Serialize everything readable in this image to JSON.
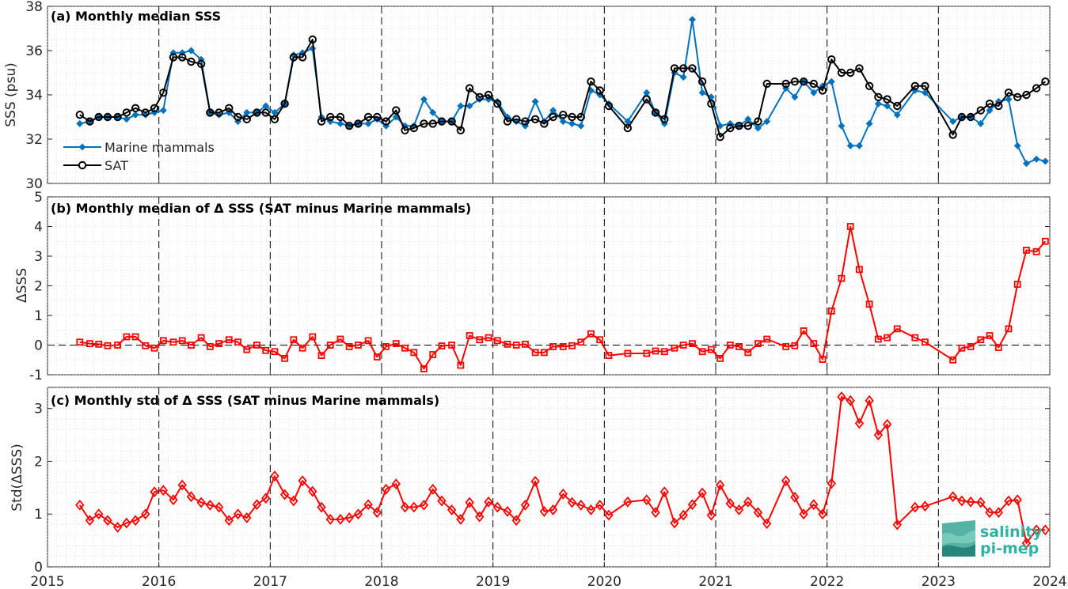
{
  "chart_data": [
    {
      "type": "line",
      "title": "(a) Monthly median SSS",
      "ylabel": "SSS (psu)",
      "xlim": [
        2015,
        2024
      ],
      "ylim": [
        30,
        38
      ],
      "yticks": [
        30,
        32,
        34,
        36,
        38
      ],
      "legend": {
        "placement": "lower-left"
      },
      "series": [
        {
          "name": "Marine mammals",
          "color": "#0072BD",
          "marker": "diamond-filled",
          "x": [
            2015.29,
            2015.38,
            2015.46,
            2015.54,
            2015.63,
            2015.71,
            2015.79,
            2015.88,
            2015.96,
            2016.04,
            2016.13,
            2016.21,
            2016.29,
            2016.38,
            2016.46,
            2016.54,
            2016.63,
            2016.71,
            2016.79,
            2016.88,
            2016.96,
            2017.04,
            2017.13,
            2017.21,
            2017.29,
            2017.38,
            2017.46,
            2017.54,
            2017.63,
            2017.71,
            2017.79,
            2017.88,
            2017.96,
            2018.04,
            2018.13,
            2018.21,
            2018.29,
            2018.38,
            2018.46,
            2018.54,
            2018.63,
            2018.71,
            2018.79,
            2018.88,
            2018.96,
            2019.04,
            2019.13,
            2019.21,
            2019.29,
            2019.38,
            2019.46,
            2019.54,
            2019.63,
            2019.71,
            2019.79,
            2019.88,
            2019.96,
            2020.04,
            2020.21,
            2020.38,
            2020.46,
            2020.54,
            2020.63,
            2020.71,
            2020.79,
            2020.88,
            2020.96,
            2021.04,
            2021.13,
            2021.21,
            2021.29,
            2021.38,
            2021.46,
            2021.63,
            2021.71,
            2021.79,
            2021.88,
            2021.96,
            2022.04,
            2022.13,
            2022.21,
            2022.29,
            2022.38,
            2022.46,
            2022.54,
            2022.63,
            2022.79,
            2022.88,
            2023.13,
            2023.21,
            2023.29,
            2023.38,
            2023.46,
            2023.54,
            2023.63,
            2023.71,
            2023.79,
            2023.88,
            2023.96
          ],
          "values": [
            32.7,
            32.8,
            33.0,
            33.0,
            33.0,
            32.9,
            33.1,
            33.1,
            33.2,
            33.3,
            35.9,
            35.9,
            36.0,
            35.6,
            33.2,
            33.1,
            33.2,
            32.8,
            33.2,
            33.2,
            33.5,
            33.2,
            33.6,
            35.8,
            35.9,
            36.1,
            33.0,
            32.8,
            32.7,
            32.6,
            32.7,
            32.7,
            32.9,
            32.6,
            33.0,
            32.6,
            32.6,
            33.8,
            33.2,
            32.8,
            32.8,
            33.5,
            33.5,
            33.8,
            33.8,
            33.7,
            33.0,
            32.8,
            32.6,
            33.7,
            32.8,
            33.3,
            32.8,
            32.7,
            32.6,
            34.2,
            34.0,
            33.6,
            32.8,
            34.1,
            33.2,
            32.7,
            35.0,
            34.8,
            37.4,
            34.1,
            33.9,
            32.6,
            32.7,
            32.6,
            32.9,
            32.5,
            32.8,
            34.3,
            33.9,
            34.6,
            34.1,
            34.4,
            34.6,
            32.6,
            31.7,
            31.7,
            32.7,
            33.6,
            33.5,
            33.1,
            34.2,
            34.1,
            32.8,
            33.0,
            33.0,
            32.7,
            33.3,
            33.7,
            33.8,
            31.7,
            30.9,
            31.1,
            31.0
          ]
        },
        {
          "name": "SAT",
          "color": "#000000",
          "marker": "circle-open",
          "x": [
            2015.29,
            2015.38,
            2015.46,
            2015.54,
            2015.63,
            2015.71,
            2015.79,
            2015.88,
            2015.96,
            2016.04,
            2016.13,
            2016.21,
            2016.29,
            2016.38,
            2016.46,
            2016.54,
            2016.63,
            2016.71,
            2016.79,
            2016.88,
            2016.96,
            2017.04,
            2017.13,
            2017.21,
            2017.29,
            2017.38,
            2017.46,
            2017.54,
            2017.63,
            2017.71,
            2017.79,
            2017.88,
            2017.96,
            2018.04,
            2018.13,
            2018.21,
            2018.29,
            2018.38,
            2018.46,
            2018.54,
            2018.63,
            2018.71,
            2018.79,
            2018.88,
            2018.96,
            2019.04,
            2019.13,
            2019.21,
            2019.29,
            2019.38,
            2019.46,
            2019.54,
            2019.63,
            2019.71,
            2019.79,
            2019.88,
            2019.96,
            2020.04,
            2020.21,
            2020.38,
            2020.46,
            2020.54,
            2020.63,
            2020.71,
            2020.79,
            2020.88,
            2020.96,
            2021.04,
            2021.13,
            2021.21,
            2021.29,
            2021.38,
            2021.46,
            2021.63,
            2021.71,
            2021.79,
            2021.88,
            2021.96,
            2022.04,
            2022.13,
            2022.21,
            2022.29,
            2022.38,
            2022.46,
            2022.54,
            2022.63,
            2022.79,
            2022.88,
            2023.13,
            2023.21,
            2023.29,
            2023.38,
            2023.46,
            2023.54,
            2023.63,
            2023.71,
            2023.79,
            2023.88,
            2023.96
          ],
          "values": [
            33.1,
            32.8,
            33.0,
            33.0,
            33.0,
            33.2,
            33.4,
            33.2,
            33.4,
            34.1,
            35.7,
            35.7,
            35.5,
            35.4,
            33.2,
            33.2,
            33.4,
            33.0,
            32.9,
            33.2,
            33.2,
            32.9,
            33.6,
            35.7,
            35.7,
            36.5,
            32.8,
            33.0,
            33.0,
            32.6,
            32.7,
            33.0,
            33.0,
            32.8,
            33.3,
            32.4,
            32.5,
            32.7,
            32.7,
            32.8,
            32.8,
            32.4,
            34.3,
            33.9,
            34.0,
            33.6,
            32.8,
            32.9,
            32.8,
            32.9,
            32.7,
            33.0,
            33.1,
            33.0,
            33.0,
            34.6,
            34.2,
            33.5,
            32.5,
            33.8,
            33.2,
            32.9,
            35.2,
            35.2,
            35.2,
            34.6,
            33.6,
            32.1,
            32.5,
            32.6,
            32.6,
            32.8,
            34.5,
            34.5,
            34.6,
            34.6,
            34.5,
            34.2,
            35.6,
            35.0,
            35.0,
            35.2,
            34.4,
            33.9,
            33.8,
            33.5,
            34.4,
            34.4,
            32.2,
            33.0,
            33.0,
            33.3,
            33.6,
            33.5,
            34.1,
            33.9,
            34.0,
            34.3,
            34.6
          ]
        }
      ]
    },
    {
      "type": "line",
      "title": "(b) Monthly median of Δ SSS (SAT minus Marine mammals)",
      "ylabel": "ΔSSS",
      "xlim": [
        2015,
        2024
      ],
      "ylim": [
        -1,
        5
      ],
      "yticks": [
        -1,
        0,
        1,
        2,
        3,
        4,
        5
      ],
      "zero_line": "dashed",
      "series": [
        {
          "color": "#FF0000",
          "marker": "square-open",
          "x": [
            2015.29,
            2015.38,
            2015.46,
            2015.54,
            2015.63,
            2015.71,
            2015.79,
            2015.88,
            2015.96,
            2016.04,
            2016.13,
            2016.21,
            2016.29,
            2016.38,
            2016.46,
            2016.54,
            2016.63,
            2016.71,
            2016.79,
            2016.88,
            2016.96,
            2017.04,
            2017.13,
            2017.21,
            2017.29,
            2017.38,
            2017.46,
            2017.54,
            2017.63,
            2017.71,
            2017.79,
            2017.88,
            2017.96,
            2018.04,
            2018.13,
            2018.21,
            2018.29,
            2018.38,
            2018.46,
            2018.54,
            2018.63,
            2018.71,
            2018.79,
            2018.88,
            2018.96,
            2019.04,
            2019.13,
            2019.21,
            2019.29,
            2019.38,
            2019.46,
            2019.54,
            2019.63,
            2019.71,
            2019.79,
            2019.88,
            2019.96,
            2020.04,
            2020.21,
            2020.38,
            2020.46,
            2020.54,
            2020.63,
            2020.71,
            2020.79,
            2020.88,
            2020.96,
            2021.04,
            2021.13,
            2021.21,
            2021.29,
            2021.38,
            2021.46,
            2021.63,
            2021.71,
            2021.79,
            2021.88,
            2021.96,
            2022.04,
            2022.13,
            2022.21,
            2022.29,
            2022.38,
            2022.46,
            2022.54,
            2022.63,
            2022.79,
            2022.88,
            2023.13,
            2023.21,
            2023.29,
            2023.38,
            2023.46,
            2023.54,
            2023.63,
            2023.71,
            2023.79,
            2023.88,
            2023.96
          ],
          "values": [
            0.1,
            0.05,
            0.03,
            -0.02,
            0.0,
            0.28,
            0.28,
            -0.02,
            -0.1,
            0.15,
            0.1,
            0.15,
            0.0,
            0.25,
            -0.05,
            0.05,
            0.18,
            0.1,
            -0.15,
            0.0,
            -0.18,
            -0.22,
            -0.45,
            0.18,
            -0.1,
            0.28,
            -0.35,
            0.0,
            0.2,
            -0.05,
            0.0,
            0.15,
            -0.4,
            -0.05,
            0.05,
            -0.1,
            -0.25,
            -0.8,
            -0.32,
            -0.03,
            0.0,
            -0.68,
            0.32,
            0.18,
            0.25,
            0.15,
            0.03,
            0.0,
            0.03,
            -0.25,
            -0.25,
            -0.05,
            -0.05,
            -0.02,
            0.1,
            0.38,
            0.18,
            -0.35,
            -0.28,
            -0.28,
            -0.2,
            -0.22,
            -0.1,
            0.0,
            0.05,
            -0.22,
            -0.15,
            -0.45,
            0.0,
            -0.05,
            -0.25,
            0.05,
            0.2,
            -0.05,
            -0.02,
            0.48,
            0.05,
            -0.48,
            1.15,
            2.25,
            4.0,
            2.55,
            1.38,
            0.2,
            0.25,
            0.55,
            0.25,
            0.1,
            -0.5,
            -0.1,
            -0.05,
            0.18,
            0.32,
            -0.08,
            0.55,
            2.05,
            3.2,
            3.15,
            3.5
          ]
        }
      ]
    },
    {
      "type": "line",
      "title": "(c) Monthly std of Δ SSS (SAT minus Marine mammals)",
      "ylabel": "Std(ΔSSS)",
      "xlim": [
        2015,
        2024
      ],
      "ylim": [
        0,
        3.4
      ],
      "yticks": [
        0,
        1,
        2,
        3
      ],
      "xticks": [
        2015,
        2016,
        2017,
        2018,
        2019,
        2020,
        2021,
        2022,
        2023,
        2024
      ],
      "series": [
        {
          "color": "#FF0000",
          "marker": "diamond-open",
          "x": [
            2015.29,
            2015.38,
            2015.46,
            2015.54,
            2015.63,
            2015.71,
            2015.79,
            2015.88,
            2015.96,
            2016.04,
            2016.13,
            2016.21,
            2016.29,
            2016.38,
            2016.46,
            2016.54,
            2016.63,
            2016.71,
            2016.79,
            2016.88,
            2016.96,
            2017.04,
            2017.13,
            2017.21,
            2017.29,
            2017.38,
            2017.46,
            2017.54,
            2017.63,
            2017.71,
            2017.79,
            2017.88,
            2017.96,
            2018.04,
            2018.13,
            2018.21,
            2018.29,
            2018.38,
            2018.46,
            2018.54,
            2018.63,
            2018.71,
            2018.79,
            2018.88,
            2018.96,
            2019.04,
            2019.13,
            2019.21,
            2019.29,
            2019.38,
            2019.46,
            2019.54,
            2019.63,
            2019.71,
            2019.79,
            2019.88,
            2019.96,
            2020.04,
            2020.21,
            2020.38,
            2020.46,
            2020.54,
            2020.63,
            2020.71,
            2020.79,
            2020.88,
            2020.96,
            2021.04,
            2021.13,
            2021.21,
            2021.29,
            2021.38,
            2021.46,
            2021.63,
            2021.71,
            2021.79,
            2021.88,
            2021.96,
            2022.04,
            2022.13,
            2022.21,
            2022.29,
            2022.38,
            2022.46,
            2022.54,
            2022.63,
            2022.79,
            2022.88,
            2023.13,
            2023.21,
            2023.29,
            2023.38,
            2023.46,
            2023.54,
            2023.63,
            2023.71,
            2023.79,
            2023.88,
            2023.96
          ],
          "values": [
            1.17,
            0.88,
            1.0,
            0.88,
            0.75,
            0.83,
            0.88,
            1.0,
            1.42,
            1.45,
            1.27,
            1.55,
            1.33,
            1.22,
            1.17,
            1.13,
            0.88,
            1.0,
            0.93,
            1.18,
            1.3,
            1.72,
            1.37,
            1.25,
            1.63,
            1.43,
            1.13,
            0.9,
            0.9,
            0.93,
            1.0,
            1.18,
            1.03,
            1.47,
            1.57,
            1.13,
            1.13,
            1.17,
            1.47,
            1.25,
            1.08,
            0.9,
            1.22,
            0.95,
            1.23,
            1.13,
            1.05,
            0.88,
            1.17,
            1.62,
            1.05,
            1.08,
            1.38,
            1.22,
            1.17,
            1.08,
            1.17,
            0.98,
            1.23,
            1.27,
            1.03,
            1.42,
            0.83,
            0.98,
            1.18,
            1.4,
            0.98,
            1.55,
            1.2,
            1.08,
            1.23,
            1.03,
            0.82,
            1.63,
            1.32,
            1.0,
            1.18,
            1.0,
            1.58,
            3.22,
            3.15,
            2.72,
            3.15,
            2.5,
            2.7,
            0.8,
            1.13,
            1.15,
            1.33,
            1.25,
            1.23,
            1.22,
            1.03,
            1.03,
            1.25,
            1.27,
            0.45,
            0.7,
            0.7
          ]
        }
      ]
    }
  ],
  "logo": {
    "line1": "salinity",
    "line2": "pi-mep"
  }
}
